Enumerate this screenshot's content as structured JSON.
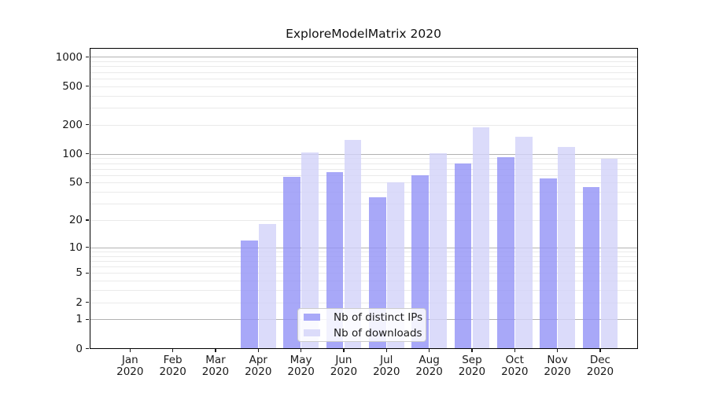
{
  "title": "ExploreModelMatrix 2020",
  "chart_data": {
    "type": "bar",
    "title": "ExploreModelMatrix 2020",
    "year": "2020",
    "months": [
      "Jan",
      "Feb",
      "Mar",
      "Apr",
      "May",
      "Jun",
      "Jul",
      "Aug",
      "Sep",
      "Oct",
      "Nov",
      "Dec"
    ],
    "categories": [
      "Jan 2020",
      "Feb 2020",
      "Mar 2020",
      "Apr 2020",
      "May 2020",
      "Jun 2020",
      "Jul 2020",
      "Aug 2020",
      "Sep 2020",
      "Oct 2020",
      "Nov 2020",
      "Dec 2020"
    ],
    "series": [
      {
        "name": "Nb of distinct IPs",
        "color": "#a8a8f8",
        "values": [
          null,
          null,
          null,
          12,
          58,
          65,
          35,
          60,
          80,
          93,
          55,
          45
        ]
      },
      {
        "name": "Nb of downloads",
        "color": "#dbdbfa",
        "values": [
          null,
          null,
          null,
          18,
          103,
          140,
          50,
          101,
          187,
          149,
          118,
          89
        ]
      }
    ],
    "xlabel": "",
    "ylabel": "",
    "yscale": "symlog (log(1+x))",
    "ylim": [
      0,
      1220
    ],
    "y_ticks_labeled": [
      0,
      1,
      2,
      5,
      10,
      20,
      50,
      100,
      200,
      500,
      1000
    ],
    "y_major_grid": [
      1,
      10,
      100,
      1000
    ],
    "y_minor_grid": [
      2,
      3,
      4,
      5,
      6,
      7,
      8,
      9,
      20,
      30,
      40,
      50,
      60,
      70,
      80,
      90,
      200,
      300,
      400,
      500,
      600,
      700,
      800,
      900
    ],
    "grid": "on",
    "legend_position": "inside bottom-center"
  },
  "legend": {
    "items": [
      {
        "label": "Nb of distinct IPs",
        "color": "#a8a8f8"
      },
      {
        "label": "Nb of downloads",
        "color": "#dbdbfa"
      }
    ]
  },
  "colors": {
    "bar_distinct_ips": "#a8a8f8",
    "bar_downloads": "#dbdbfa",
    "bar_distinct_ips_rgba": "rgba(146,146,246,0.8)",
    "bar_downloads_rgba": "rgba(210,210,249,0.8)",
    "grid_major": "#b2b2b2",
    "grid_minor": "#eaeaea",
    "spine": "#000000",
    "text": "#1a1a1a",
    "legend_border": "#cccccc",
    "legend_bg": "rgba(255,255,255,0.85)"
  }
}
